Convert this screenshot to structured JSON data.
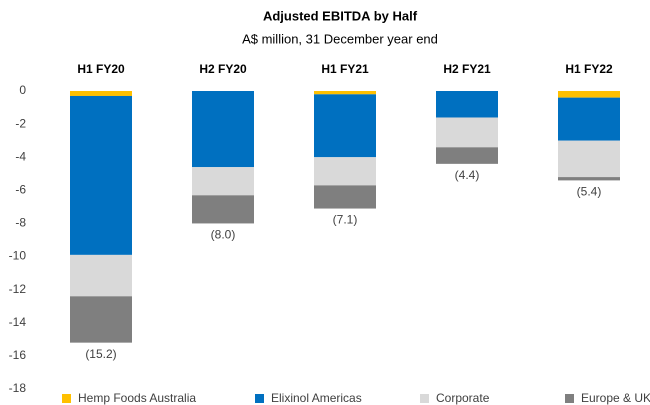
{
  "chart_data": {
    "type": "stacked_bar",
    "title": "Adjusted EBITDA by Half",
    "subtitle": "A$ million, 31 December year end",
    "categories": [
      "H1 FY20",
      "H2 FY20",
      "H1 FY21",
      "H2 FY21",
      "H1 FY22"
    ],
    "series": [
      {
        "name": "Hemp Foods Australia",
        "color": "#ffc000",
        "values": [
          -0.3,
          0,
          -0.2,
          0,
          -0.4
        ]
      },
      {
        "name": "Elixinol Americas",
        "color": "#0070c0",
        "values": [
          -9.6,
          -4.6,
          -3.8,
          -1.6,
          -2.6
        ]
      },
      {
        "name": "Corporate",
        "color": "#d9d9d9",
        "values": [
          -2.5,
          -1.7,
          -1.7,
          -1.8,
          -2.2
        ]
      },
      {
        "name": "Europe & UK",
        "color": "#7f7f7f",
        "values": [
          -2.8,
          -1.7,
          -1.4,
          -1.0,
          -0.2
        ]
      }
    ],
    "totals": [
      -15.2,
      -8.0,
      -7.1,
      -4.4,
      -5.4
    ],
    "total_labels": [
      "(15.2)",
      "(8.0)",
      "(7.1)",
      "(4.4)",
      "(5.4)"
    ],
    "ylim": [
      -18,
      0
    ],
    "yticks": [
      0,
      -2,
      -4,
      -6,
      -8,
      -10,
      -12,
      -14,
      -16,
      -18
    ],
    "grid": false,
    "legend": "bottom"
  }
}
